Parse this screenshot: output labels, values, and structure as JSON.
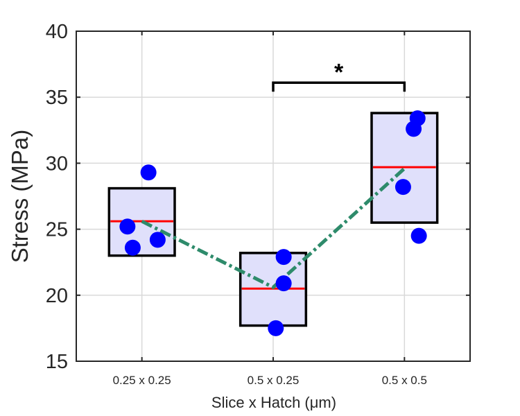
{
  "chart_data": {
    "type": "box",
    "categories": [
      "0.25 x 0.25",
      "0.5 x 0.25",
      "0.5 x 0.5"
    ],
    "xlabel": "Slice x Hatch (μm)",
    "ylabel": "Stress (MPa)",
    "ylim": [
      15,
      40
    ],
    "yticks": [
      15,
      20,
      25,
      30,
      35,
      40
    ],
    "grid": true,
    "boxes": [
      {
        "category": "0.25 x 0.25",
        "low": 23.0,
        "high": 28.1,
        "median": 25.6
      },
      {
        "category": "0.5 x 0.25",
        "low": 17.7,
        "high": 23.2,
        "median": 20.5
      },
      {
        "category": "0.5 x 0.5",
        "low": 25.5,
        "high": 33.8,
        "median": 29.7
      }
    ],
    "points": [
      {
        "category": "0.25 x 0.25",
        "x_offset": 0.05,
        "y": 29.3
      },
      {
        "category": "0.25 x 0.25",
        "x_offset": -0.11,
        "y": 25.2
      },
      {
        "category": "0.25 x 0.25",
        "x_offset": -0.07,
        "y": 23.6
      },
      {
        "category": "0.25 x 0.25",
        "x_offset": 0.12,
        "y": 24.2
      },
      {
        "category": "0.5 x 0.25",
        "x_offset": 0.08,
        "y": 22.9
      },
      {
        "category": "0.5 x 0.25",
        "x_offset": 0.08,
        "y": 20.9
      },
      {
        "category": "0.5 x 0.25",
        "x_offset": 0.02,
        "y": 17.5
      },
      {
        "category": "0.5 x 0.5",
        "x_offset": 0.1,
        "y": 33.4
      },
      {
        "category": "0.5 x 0.5",
        "x_offset": 0.07,
        "y": 32.6
      },
      {
        "category": "0.5 x 0.5",
        "x_offset": -0.01,
        "y": 28.2
      },
      {
        "category": "0.5 x 0.5",
        "x_offset": 0.11,
        "y": 24.5
      }
    ],
    "mean_line": [
      25.6,
      20.6,
      29.6
    ],
    "significance": {
      "from": "0.5 x 0.25",
      "to": "0.5 x 0.5",
      "y": 36.1,
      "label": "*"
    },
    "colors": {
      "box_fill": "#e0e0fb",
      "box_edge": "#000000",
      "median": "#ff0000",
      "points": "#0000ff",
      "trend": "#2e8b6b",
      "grid": "#d9d9d9",
      "axis": "#262626"
    }
  }
}
